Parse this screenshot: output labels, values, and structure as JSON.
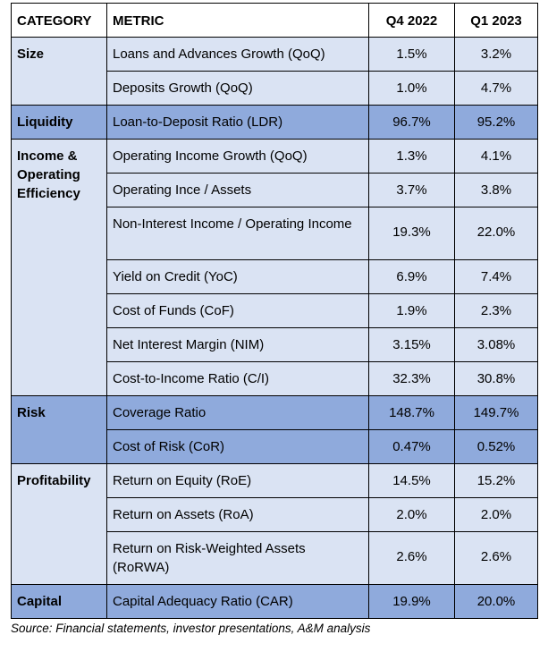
{
  "header": {
    "category": "CATEGORY",
    "metric": "METRIC",
    "q4": "Q4 2022",
    "q1": "Q1 2023"
  },
  "groups": [
    {
      "category": "Size",
      "shade": "light",
      "rows": [
        {
          "metric": "Loans and Advances Growth (QoQ)",
          "q4": "1.5%",
          "q1": "3.2%"
        },
        {
          "metric": "Deposits Growth (QoQ)",
          "q4": "1.0%",
          "q1": "4.7%"
        }
      ]
    },
    {
      "category": "Liquidity",
      "shade": "dark",
      "rows": [
        {
          "metric": "Loan-to-Deposit Ratio (LDR)",
          "q4": "96.7%",
          "q1": "95.2%"
        }
      ]
    },
    {
      "category": "Income & Operating Efficiency",
      "shade": "light",
      "rows": [
        {
          "metric": "Operating Income Growth (QoQ)",
          "q4": "1.3%",
          "q1": "4.1%"
        },
        {
          "metric": "Operating Ince / Assets",
          "q4": "3.7%",
          "q1": "3.8%"
        },
        {
          "metric": "Non-Interest Income / Operating Income",
          "q4": "19.3%",
          "q1": "22.0%",
          "tall": true
        },
        {
          "metric": "Yield on Credit (YoC)",
          "q4": "6.9%",
          "q1": "7.4%"
        },
        {
          "metric": "Cost of Funds (CoF)",
          "q4": "1.9%",
          "q1": "2.3%"
        },
        {
          "metric": "Net Interest Margin (NIM)",
          "q4": "3.15%",
          "q1": "3.08%"
        },
        {
          "metric": "Cost-to-Income Ratio (C/I)",
          "q4": "32.3%",
          "q1": "30.8%"
        }
      ]
    },
    {
      "category": "Risk",
      "shade": "dark",
      "rows": [
        {
          "metric": "Coverage Ratio",
          "q4": "148.7%",
          "q1": "149.7%"
        },
        {
          "metric": "Cost of Risk (CoR)",
          "q4": "0.47%",
          "q1": "0.52%"
        }
      ]
    },
    {
      "category": "Profitability",
      "shade": "light",
      "rows": [
        {
          "metric": "Return on Equity (RoE)",
          "q4": "14.5%",
          "q1": "15.2%"
        },
        {
          "metric": "Return on Assets (RoA)",
          "q4": "2.0%",
          "q1": "2.0%"
        },
        {
          "metric": "Return on Risk-Weighted Assets (RoRWA)",
          "q4": "2.6%",
          "q1": "2.6%",
          "tall": true
        }
      ]
    },
    {
      "category": "Capital",
      "shade": "dark",
      "rows": [
        {
          "metric": "Capital Adequacy Ratio (CAR)",
          "q4": "19.9%",
          "q1": "20.0%"
        }
      ]
    }
  ],
  "source": "Source: Financial statements, investor presentations, A&M analysis"
}
